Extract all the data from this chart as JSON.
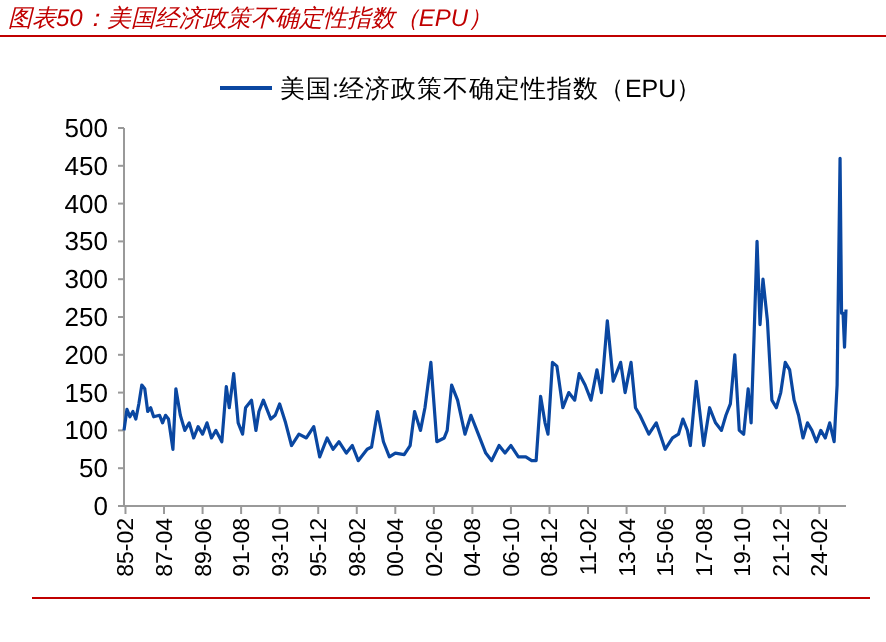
{
  "chart_data": {
    "type": "line",
    "title": "图表50：美国经济政策不确定性指数（EPU）",
    "legend": "top",
    "grid": false,
    "xlim": [
      "1985-01",
      "2025-08"
    ],
    "xticks": [
      {
        "value": "1985-02",
        "label": "85-02"
      },
      {
        "value": "1987-04",
        "label": "87-04"
      },
      {
        "value": "1989-06",
        "label": "89-06"
      },
      {
        "value": "1991-08",
        "label": "91-08"
      },
      {
        "value": "1993-10",
        "label": "93-10"
      },
      {
        "value": "1995-12",
        "label": "95-12"
      },
      {
        "value": "1998-02",
        "label": "98-02"
      },
      {
        "value": "2000-04",
        "label": "00-04"
      },
      {
        "value": "2002-06",
        "label": "02-06"
      },
      {
        "value": "2004-08",
        "label": "04-08"
      },
      {
        "value": "2006-10",
        "label": "06-10"
      },
      {
        "value": "2008-12",
        "label": "08-12"
      },
      {
        "value": "2011-02",
        "label": "11-02"
      },
      {
        "value": "2013-04",
        "label": "13-04"
      },
      {
        "value": "2015-06",
        "label": "15-06"
      },
      {
        "value": "2017-08",
        "label": "17-08"
      },
      {
        "value": "2019-10",
        "label": "19-10"
      },
      {
        "value": "2021-12",
        "label": "21-12"
      },
      {
        "value": "2024-02",
        "label": "24-02"
      }
    ],
    "ylim": [
      0,
      500
    ],
    "yticks": [
      0,
      50,
      100,
      150,
      200,
      250,
      300,
      350,
      400,
      450,
      500
    ],
    "series": [
      {
        "name": "美国:经济政策不确定性指数（EPU）",
        "color": "#0a47a1",
        "x": [
          "1985-01",
          "1985-03",
          "1985-05",
          "1985-07",
          "1985-09",
          "1985-11",
          "1986-01",
          "1986-03",
          "1986-05",
          "1986-07",
          "1986-09",
          "1987-01",
          "1987-03",
          "1987-05",
          "1987-07",
          "1987-10",
          "1987-12",
          "1988-03",
          "1988-06",
          "1988-09",
          "1988-12",
          "1989-03",
          "1989-06",
          "1989-09",
          "1989-12",
          "1990-03",
          "1990-07",
          "1990-10",
          "1990-12",
          "1991-03",
          "1991-06",
          "1991-09",
          "1991-11",
          "1992-03",
          "1992-06",
          "1992-08",
          "1992-11",
          "1993-04",
          "1993-07",
          "1993-10",
          "1994-02",
          "1994-06",
          "1994-11",
          "1995-04",
          "1995-09",
          "1996-01",
          "1996-06",
          "1996-10",
          "1997-02",
          "1997-07",
          "1997-11",
          "1998-03",
          "1998-09",
          "1998-12",
          "1999-04",
          "1999-08",
          "1999-12",
          "2000-04",
          "2000-10",
          "2001-02",
          "2001-05",
          "2001-09",
          "2001-12",
          "2002-04",
          "2002-08",
          "2003-01",
          "2003-03",
          "2003-06",
          "2003-10",
          "2004-03",
          "2004-07",
          "2004-12",
          "2005-05",
          "2005-09",
          "2006-02",
          "2006-06",
          "2006-10",
          "2007-03",
          "2007-08",
          "2007-12",
          "2008-03",
          "2008-06",
          "2008-09",
          "2008-11",
          "2009-02",
          "2009-05",
          "2009-09",
          "2010-01",
          "2010-05",
          "2010-08",
          "2010-12",
          "2011-04",
          "2011-08",
          "2011-11",
          "2012-03",
          "2012-07",
          "2012-12",
          "2013-03",
          "2013-07",
          "2013-10",
          "2014-01",
          "2014-07",
          "2014-12",
          "2015-06",
          "2015-11",
          "2016-03",
          "2016-06",
          "2016-09",
          "2016-11",
          "2017-03",
          "2017-08",
          "2017-12",
          "2018-04",
          "2018-08",
          "2018-11",
          "2019-02",
          "2019-05",
          "2019-08",
          "2019-11",
          "2020-02",
          "2020-04",
          "2020-06",
          "2020-08",
          "2020-10",
          "2020-12",
          "2021-03",
          "2021-06",
          "2021-09",
          "2021-12",
          "2022-03",
          "2022-06",
          "2022-09",
          "2022-12",
          "2023-03",
          "2023-06",
          "2023-09",
          "2023-12",
          "2024-03",
          "2024-06",
          "2024-09",
          "2024-12",
          "2025-02",
          "2025-04",
          "2025-05",
          "2025-06",
          "2025-07",
          "2025-08"
        ],
        "values": [
          100,
          128,
          118,
          125,
          115,
          135,
          160,
          155,
          125,
          130,
          118,
          120,
          110,
          120,
          115,
          75,
          155,
          120,
          100,
          110,
          90,
          105,
          95,
          110,
          90,
          100,
          85,
          158,
          130,
          175,
          110,
          95,
          130,
          140,
          100,
          125,
          140,
          115,
          120,
          135,
          110,
          80,
          95,
          90,
          105,
          65,
          90,
          75,
          85,
          70,
          80,
          60,
          75,
          78,
          125,
          85,
          65,
          70,
          68,
          80,
          125,
          100,
          130,
          190,
          85,
          90,
          100,
          160,
          140,
          95,
          120,
          95,
          70,
          60,
          80,
          70,
          80,
          65,
          65,
          60,
          60,
          145,
          110,
          95,
          190,
          185,
          130,
          150,
          140,
          175,
          160,
          140,
          180,
          150,
          245,
          165,
          190,
          150,
          190,
          130,
          120,
          95,
          110,
          75,
          90,
          95,
          115,
          100,
          80,
          165,
          80,
          130,
          110,
          100,
          120,
          135,
          200,
          100,
          95,
          155,
          110,
          225,
          350,
          240,
          300,
          245,
          140,
          130,
          150,
          190,
          180,
          140,
          120,
          90,
          110,
          100,
          85,
          100,
          90,
          110,
          85,
          160,
          460,
          255,
          255,
          210,
          260
        ]
      }
    ]
  }
}
